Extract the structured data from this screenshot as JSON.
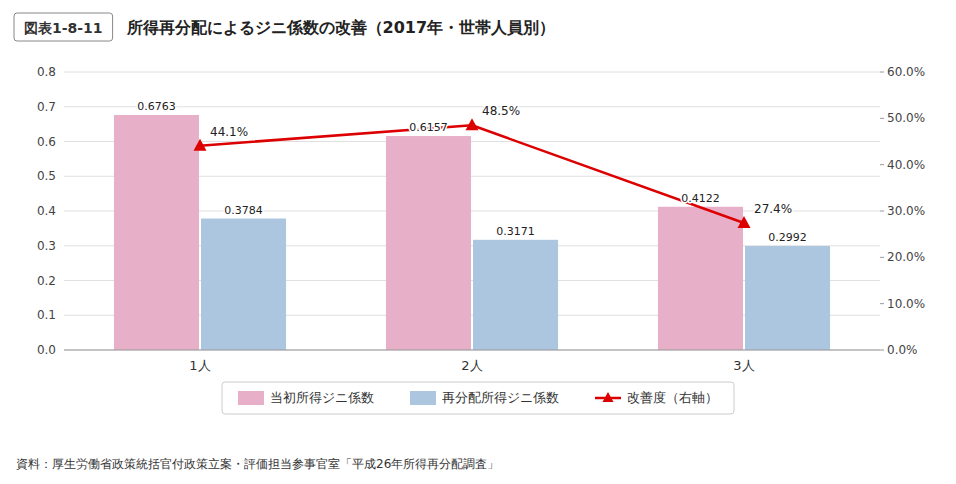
{
  "chart_data": {
    "type": "bar",
    "title": "所得再分配によるジニ係数の改善（2017年・世帯人員別）",
    "annotations": [
      "図表1-8-11",
      "資料：厚生労働省政策統括官付政策立案・評価担当参事官室「平成26年所得再分配調査」"
    ],
    "categories": [
      "1人",
      "2人",
      "3人"
    ],
    "series": [
      {
        "name": "当初所得ジニ係数",
        "type": "bar",
        "color": "#e8afc8",
        "values": [
          0.6763,
          0.6157,
          0.4122
        ],
        "data_labels": true
      },
      {
        "name": "再分配所得ジニ係数",
        "type": "bar",
        "color": "#adc6e0",
        "values": [
          0.3784,
          0.3171,
          0.2992
        ],
        "data_labels": true
      },
      {
        "name": "改善度（右軸）",
        "type": "line",
        "axis": "y2",
        "color": "#dd0000",
        "marker": "triangle",
        "values": [
          44.1,
          48.5,
          27.4
        ],
        "value_labels": [
          "44.1%",
          "48.5%",
          "27.4%"
        ],
        "data_labels": true
      }
    ],
    "ylim": [
      0,
      0.8
    ],
    "yticks": [
      {
        "value": 0,
        "label": "0.0"
      },
      0.1,
      0.2,
      0.3,
      0.4,
      0.5,
      0.6,
      0.7,
      0.8
    ],
    "y2lim": [
      0,
      60
    ],
    "y2ticks": [
      {
        "value": 0,
        "label": "0.0%"
      },
      {
        "value": 10,
        "label": "10.0%"
      },
      {
        "value": 20,
        "label": "20.0%"
      },
      {
        "value": 30,
        "label": "30.0%"
      },
      {
        "value": 40,
        "label": "40.0%"
      },
      {
        "value": 50,
        "label": "50.0%"
      },
      {
        "value": 60,
        "label": "60.0%"
      }
    ],
    "grid": true,
    "legend": "bottom"
  }
}
